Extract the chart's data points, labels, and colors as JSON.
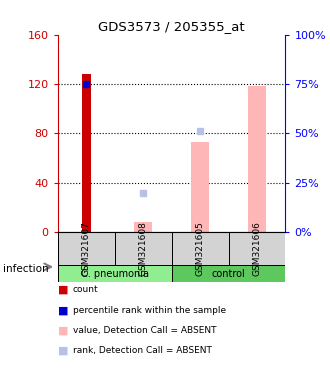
{
  "title": "GDS3573 / 205355_at",
  "samples": [
    "GSM321607",
    "GSM321608",
    "GSM321605",
    "GSM321606"
  ],
  "left_ylim": [
    0,
    160
  ],
  "right_ylim": [
    0,
    100
  ],
  "left_ticks": [
    0,
    40,
    80,
    120,
    160
  ],
  "right_ticks": [
    0,
    25,
    50,
    75,
    100
  ],
  "left_tick_labels": [
    "0",
    "40",
    "80",
    "120",
    "160"
  ],
  "right_tick_labels": [
    "0%",
    "25%",
    "50%",
    "75%",
    "100%"
  ],
  "count_values": [
    128,
    null,
    null,
    null
  ],
  "count_color": "#cc0000",
  "percentile_values": [
    120,
    null,
    null,
    null
  ],
  "percentile_color": "#0000cc",
  "absent_value_bars": [
    null,
    8,
    73,
    118
  ],
  "absent_value_color": "#ffb6b6",
  "absent_rank_dots": [
    null,
    32,
    82,
    null
  ],
  "absent_rank_color": "#b8c0e8",
  "legend_items": [
    {
      "color": "#cc0000",
      "label": "count"
    },
    {
      "color": "#0000cc",
      "label": "percentile rank within the sample"
    },
    {
      "color": "#ffb6b6",
      "label": "value, Detection Call = ABSENT"
    },
    {
      "color": "#b8c0e8",
      "label": "rank, Detection Call = ABSENT"
    }
  ],
  "cpn_color": "#90ee90",
  "ctrl_color": "#5dc85d",
  "sample_box_color": "#d3d3d3",
  "grid_color": "black",
  "grid_style": ":"
}
